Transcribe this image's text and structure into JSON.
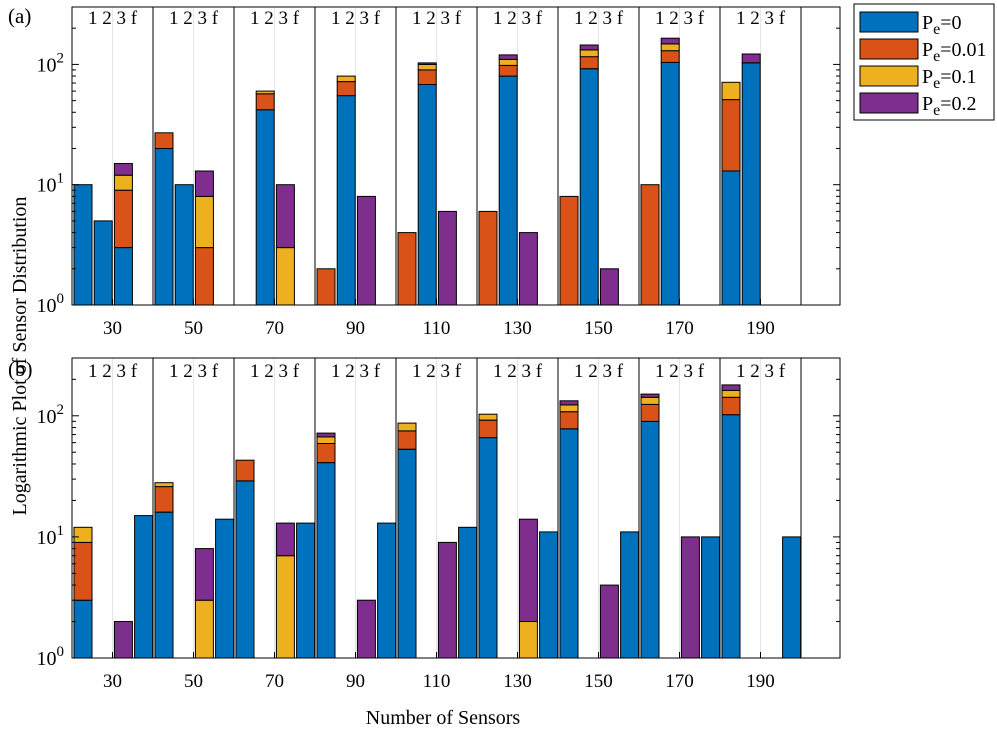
{
  "chart_data": {
    "type": "bar",
    "subtype": "stacked-grouped-log",
    "xlabel": "Number of Sensors",
    "ylabel": "Logarithmic Plot of Sensor Distribution",
    "yscale": "log",
    "ylim": [
      1,
      300
    ],
    "ytick_bases": [
      "10",
      "10",
      "10"
    ],
    "ytick_exponents": [
      "0",
      "1",
      "2"
    ],
    "categories": [
      "30",
      "50",
      "70",
      "90",
      "110",
      "130",
      "150",
      "170",
      "190"
    ],
    "slot_labels": [
      "1",
      "2",
      "3",
      "f"
    ],
    "series_names": [
      "Pe=0",
      "Pe=0.01",
      "Pe=0.1",
      "Pe=0.2"
    ],
    "legend": {
      "location": "top-right-outside",
      "entries": [
        {
          "base": "P",
          "sub": "e",
          "suffix": "=0",
          "color": "#0072BD"
        },
        {
          "base": "P",
          "sub": "e",
          "suffix": "=0.01",
          "color": "#D95319"
        },
        {
          "base": "P",
          "sub": "e",
          "suffix": "=0.1",
          "color": "#EDB120"
        },
        {
          "base": "P",
          "sub": "e",
          "suffix": "=0.2",
          "color": "#7E2F8E"
        }
      ]
    },
    "panels": [
      {
        "label": "(a)",
        "groups": [
          [
            [
              10,
              0,
              0,
              0
            ],
            [
              5,
              0,
              0,
              0
            ],
            [
              3,
              6,
              3,
              3
            ],
            [
              0,
              0,
              0,
              0
            ]
          ],
          [
            [
              20,
              7,
              0,
              0
            ],
            [
              10,
              0,
              0,
              0
            ],
            [
              0,
              3,
              5,
              5
            ],
            [
              0,
              0,
              0,
              0
            ]
          ],
          [
            [
              0,
              0,
              0,
              0
            ],
            [
              42,
              15,
              3,
              0
            ],
            [
              0,
              0,
              3,
              7
            ],
            [
              0,
              0,
              0,
              0
            ]
          ],
          [
            [
              0,
              2,
              0,
              0
            ],
            [
              55,
              17,
              8,
              0
            ],
            [
              0,
              0,
              0,
              8
            ],
            [
              0,
              0,
              0,
              0
            ]
          ],
          [
            [
              0,
              4,
              0,
              0
            ],
            [
              68,
              22,
              10,
              3
            ],
            [
              0,
              0,
              0,
              6
            ],
            [
              0,
              0,
              0,
              0
            ]
          ],
          [
            [
              0,
              6,
              0,
              0
            ],
            [
              80,
              18,
              12,
              10
            ],
            [
              0,
              0,
              0,
              4
            ],
            [
              0,
              0,
              0,
              0
            ]
          ],
          [
            [
              0,
              8,
              0,
              0
            ],
            [
              92,
              24,
              16,
              13
            ],
            [
              0,
              0,
              0,
              2
            ],
            [
              0,
              0,
              0,
              0
            ]
          ],
          [
            [
              0,
              10,
              0,
              0
            ],
            [
              104,
              26,
              18,
              17
            ],
            [
              0,
              0,
              0,
              0
            ],
            [
              0,
              0,
              0,
              0
            ]
          ],
          [
            [
              13,
              38,
              20,
              0
            ],
            [
              103,
              0,
              0,
              19
            ],
            [
              0,
              0,
              0,
              0
            ],
            [
              0,
              0,
              0,
              0
            ]
          ]
        ]
      },
      {
        "label": "(b)",
        "groups": [
          [
            [
              3,
              6,
              3,
              0
            ],
            [
              0,
              0,
              0,
              0
            ],
            [
              0,
              0,
              0,
              2
            ],
            [
              15,
              0,
              0,
              0
            ]
          ],
          [
            [
              16,
              10,
              2,
              0
            ],
            [
              0,
              0,
              0,
              0
            ],
            [
              0,
              0,
              3,
              5
            ],
            [
              14,
              0,
              0,
              0
            ]
          ],
          [
            [
              29,
              14,
              0,
              0
            ],
            [
              0,
              0,
              0,
              0
            ],
            [
              0,
              0,
              7,
              6
            ],
            [
              13,
              0,
              0,
              0
            ]
          ],
          [
            [
              41,
              18,
              8,
              5
            ],
            [
              0,
              0,
              0,
              0
            ],
            [
              0,
              0,
              0,
              3
            ],
            [
              13,
              0,
              0,
              0
            ]
          ],
          [
            [
              53,
              22,
              12,
              0
            ],
            [
              0,
              0,
              0,
              0
            ],
            [
              0,
              0,
              0,
              9
            ],
            [
              12,
              0,
              0,
              0
            ]
          ],
          [
            [
              66,
              26,
              11,
              0
            ],
            [
              0,
              0,
              0,
              0
            ],
            [
              0,
              0,
              2,
              12
            ],
            [
              11,
              0,
              0,
              0
            ]
          ],
          [
            [
              78,
              30,
              15,
              10
            ],
            [
              0,
              0,
              0,
              0
            ],
            [
              0,
              0,
              0,
              4
            ],
            [
              11,
              0,
              0,
              0
            ]
          ],
          [
            [
              90,
              34,
              18,
              9
            ],
            [
              0,
              0,
              0,
              0
            ],
            [
              0,
              0,
              0,
              10
            ],
            [
              10,
              0,
              0,
              0
            ]
          ],
          [
            [
              102,
              40,
              20,
              18
            ],
            [
              0,
              0,
              0,
              0
            ],
            [
              0,
              0,
              0,
              0
            ],
            [
              10,
              0,
              0,
              0
            ]
          ]
        ]
      }
    ]
  }
}
